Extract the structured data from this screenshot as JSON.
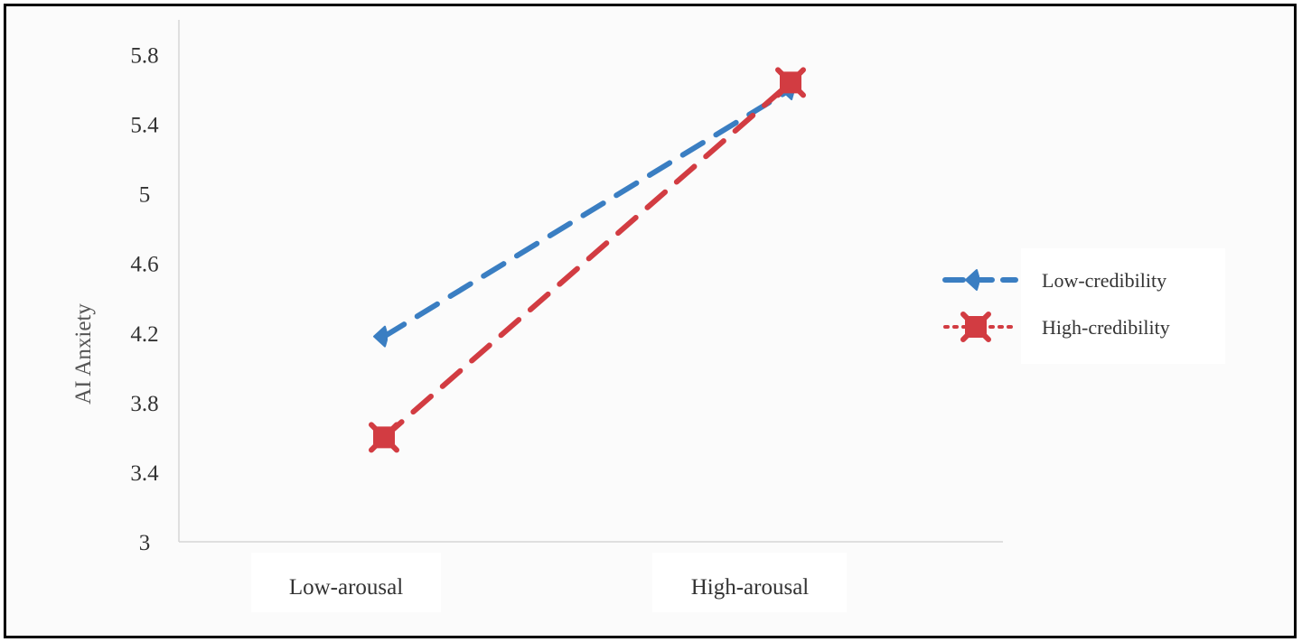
{
  "chart_data": {
    "type": "line",
    "title": "",
    "xlabel": "",
    "ylabel": "AI Anxiety",
    "categories": [
      "Low-arousal",
      "High-arousal"
    ],
    "ylim": [
      3,
      6
    ],
    "yticks": [
      "3",
      "3.4",
      "3.8",
      "4.2",
      "4.6",
      "5",
      "5.4",
      "5.8"
    ],
    "yticks_values": [
      3,
      3.4,
      3.8,
      4.2,
      4.6,
      5,
      5.4,
      5.8
    ],
    "grid": false,
    "legend_position": "right",
    "series": [
      {
        "name": "Low-credibility",
        "values": [
          4.18,
          5.6
        ],
        "color": "#3a7ec2",
        "line_style": "dashed",
        "marker": "diamond"
      },
      {
        "name": "High-credibility",
        "values": [
          3.6,
          5.64
        ],
        "color": "#d23c42",
        "line_style": "dashed",
        "legend_line_style": "dotted",
        "marker": "x-square"
      }
    ]
  }
}
